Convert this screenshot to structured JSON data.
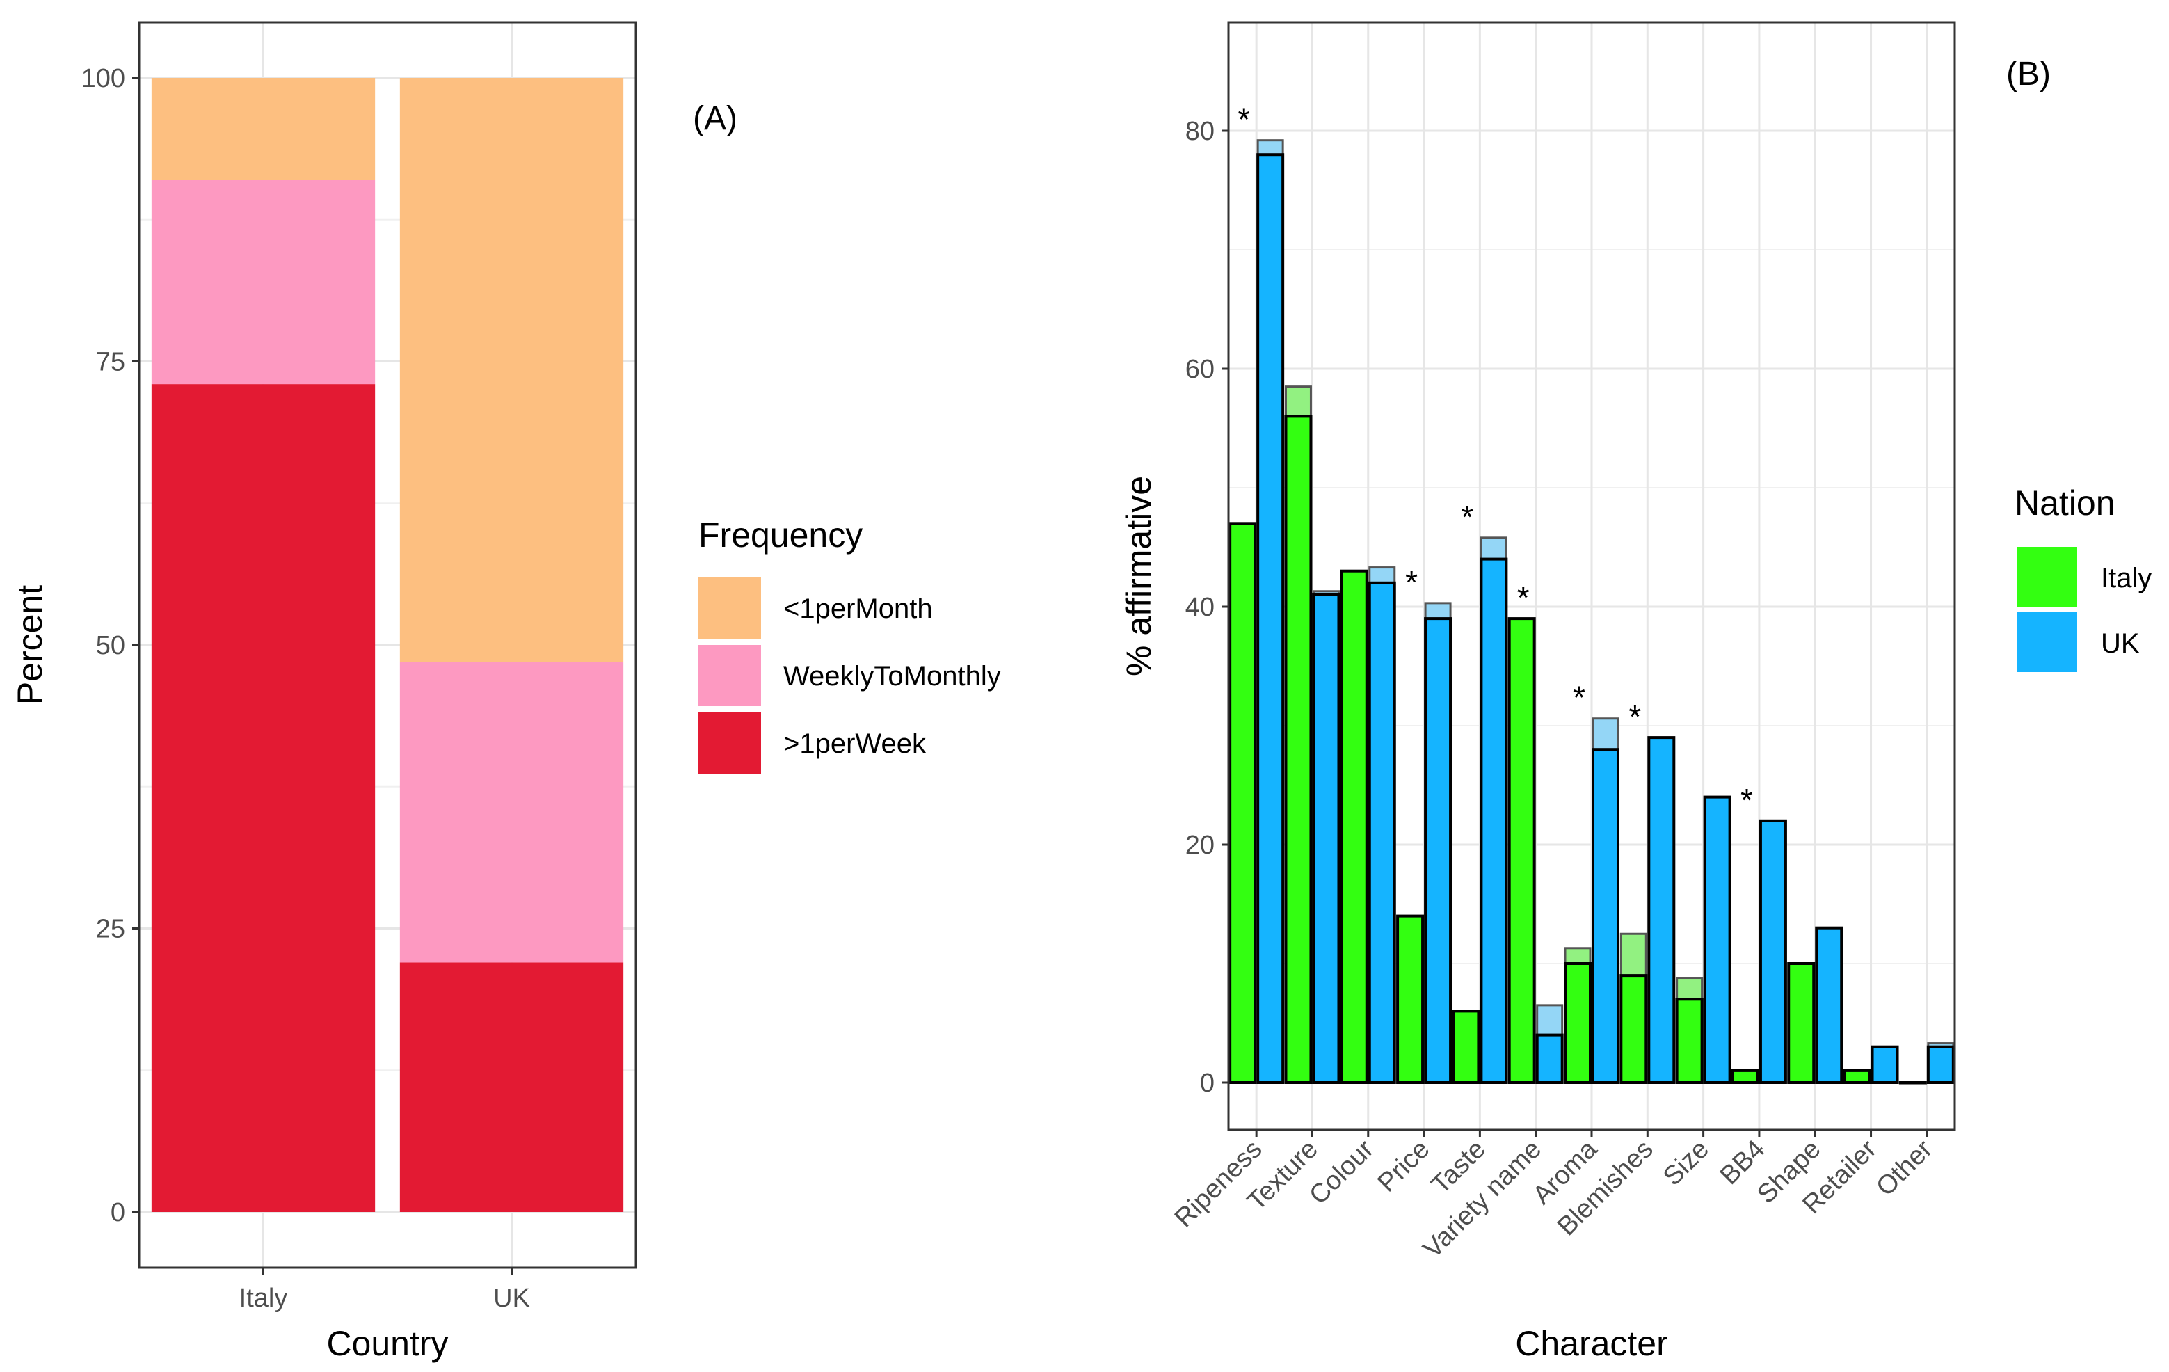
{
  "chart_data": [
    {
      "id": "A",
      "type": "bar",
      "stacked": true,
      "panel_label": "(A)",
      "xlabel": "Country",
      "ylabel": "Percent",
      "categories": [
        "Italy",
        "UK"
      ],
      "ylim": [
        0,
        100
      ],
      "yticks": [
        "0",
        "25",
        "50",
        "75",
        "100"
      ],
      "grid": true,
      "legend": {
        "title": "Frequency",
        "position": "right",
        "items": [
          {
            "name": "<1perMonth",
            "color": "#FDBF80"
          },
          {
            "name": "WeeklyToMonthly",
            "color": "#FD99C1"
          },
          {
            "name": ">1perWeek",
            "color": "#E31A33"
          }
        ]
      },
      "series": [
        {
          "name": ">1perWeek",
          "color": "#E31A33",
          "values": [
            73,
            22
          ]
        },
        {
          "name": "WeeklyToMonthly",
          "color": "#FD99C1",
          "values": [
            18,
            26.5
          ]
        },
        {
          "name": "<1perMonth",
          "color": "#FDBF80",
          "values": [
            9,
            51.5
          ]
        }
      ]
    },
    {
      "id": "B",
      "type": "bar",
      "grouped": true,
      "panel_label": "(B)",
      "xlabel": "Character",
      "ylabel": "% affirmative",
      "ylim": [
        -4,
        89
      ],
      "yticks": [
        "0",
        "20",
        "40",
        "60",
        "80"
      ],
      "grid": true,
      "categories": [
        "Ripeness",
        "Texture",
        "Colour",
        "Price",
        "Taste",
        "Variety name",
        "Aroma",
        "Blemishes",
        "Size",
        "BB4",
        "Shape",
        "Retailer",
        "Other"
      ],
      "significant": [
        true,
        false,
        false,
        true,
        true,
        true,
        true,
        true,
        false,
        true,
        false,
        false,
        false
      ],
      "significance_marker": "*",
      "legend": {
        "title": "Nation",
        "position": "right",
        "items": [
          {
            "name": "Italy",
            "color": "#33FF11"
          },
          {
            "name": "UK",
            "color": "#15B4FF"
          }
        ]
      },
      "series": [
        {
          "name": "Italy",
          "color": "#33FF11",
          "values": [
            47,
            56,
            43,
            14,
            6,
            39,
            10,
            9,
            7,
            1,
            10,
            1,
            0
          ],
          "overlay_values": [
            39.5,
            58.5,
            40,
            11.5,
            4.5,
            37,
            11.3,
            12.5,
            8.8,
            0.8,
            7.5,
            0.5,
            0
          ]
        },
        {
          "name": "UK",
          "color": "#15B4FF",
          "values": [
            78,
            41,
            42,
            39,
            44,
            4,
            28,
            29,
            24,
            22,
            13,
            3,
            3
          ],
          "overlay_values": [
            79.2,
            41.3,
            43.3,
            40.3,
            45.8,
            6.5,
            30.6,
            28,
            23,
            20.8,
            12.5,
            2.7,
            3.3
          ]
        }
      ]
    }
  ]
}
